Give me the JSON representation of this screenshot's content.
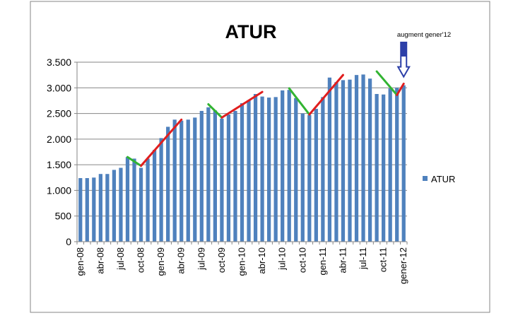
{
  "chart_data": {
    "type": "bar",
    "title": "ATUR",
    "xlabel": "",
    "ylabel": "",
    "ylim": [
      0,
      3500
    ],
    "yticks": [
      0,
      500,
      1000,
      1500,
      2000,
      2500,
      3000,
      3500
    ],
    "ytick_labels": [
      "0",
      "500",
      "1.000",
      "1.500",
      "2.000",
      "2.500",
      "3.000",
      "3.500"
    ],
    "grid": true,
    "legend_position": "right",
    "categories": [
      "gen-08",
      "feb-08",
      "mar-08",
      "abr-08",
      "mai-08",
      "jun-08",
      "jul-08",
      "ago-08",
      "set-08",
      "oct-08",
      "nov-08",
      "des-08",
      "gen-09",
      "feb-09",
      "mar-09",
      "abr-09",
      "mai-09",
      "jun-09",
      "jul-09",
      "ago-09",
      "set-09",
      "oct-09",
      "nov-09",
      "des-09",
      "gen-10",
      "feb-10",
      "mar-10",
      "abr-10",
      "mai-10",
      "jun-10",
      "jul-10",
      "ago-10",
      "set-10",
      "oct-10",
      "nov-10",
      "des-10",
      "gen-11",
      "feb-11",
      "mar-11",
      "abr-11",
      "mai-11",
      "jun-11",
      "jul-11",
      "ago-11",
      "set-11",
      "oct-11",
      "nov-11",
      "des-11",
      "gener-12"
    ],
    "shown_tick_labels": [
      "gen-08",
      "abr-08",
      "jul-08",
      "oct-08",
      "gen-09",
      "abr-09",
      "jul-09",
      "oct-09",
      "gen-10",
      "abr-10",
      "jul-10",
      "oct-10",
      "gen-11",
      "abr-11",
      "jul-11",
      "oct-11",
      "gener-12"
    ],
    "series": [
      {
        "name": "ATUR",
        "color": "#4f81bd",
        "values": [
          1240,
          1240,
          1250,
          1320,
          1320,
          1400,
          1440,
          1650,
          1620,
          1440,
          1620,
          1790,
          2020,
          2240,
          2380,
          2360,
          2380,
          2420,
          2550,
          2620,
          2560,
          2400,
          2480,
          2550,
          2700,
          2760,
          2880,
          2830,
          2810,
          2820,
          2950,
          2960,
          2800,
          2500,
          2470,
          2590,
          2820,
          3200,
          3110,
          3150,
          3160,
          3250,
          3260,
          3180,
          2880,
          2870,
          2990,
          3000,
          3050
        ]
      }
    ],
    "annotation": {
      "text": "augment gener'12",
      "arrow_color": "#2c3fa8",
      "points_to": "gener-12"
    },
    "trend_lines": [
      {
        "color": "#32b432",
        "from": "ago-08",
        "to": "oct-08",
        "y_from": 1650,
        "y_to": 1480
      },
      {
        "color": "#e01e1e",
        "from": "oct-08",
        "to": "abr-09",
        "y_from": 1480,
        "y_to": 2380
      },
      {
        "color": "#32b432",
        "from": "ago-09",
        "to": "oct-09",
        "y_from": 2680,
        "y_to": 2420
      },
      {
        "color": "#e01e1e",
        "from": "oct-09",
        "to": "abr-10",
        "y_from": 2420,
        "y_to": 2920
      },
      {
        "color": "#32b432",
        "from": "ago-10",
        "to": "nov-10",
        "y_from": 2990,
        "y_to": 2480
      },
      {
        "color": "#e01e1e",
        "from": "nov-10",
        "to": "abr-11",
        "y_from": 2480,
        "y_to": 3250
      },
      {
        "color": "#32b432",
        "from": "set-11",
        "to": "des-11",
        "y_from": 3320,
        "y_to": 2860
      },
      {
        "color": "#e01e1e",
        "from": "des-11",
        "to": "gener-12",
        "y_from": 2860,
        "y_to": 3080
      }
    ]
  }
}
